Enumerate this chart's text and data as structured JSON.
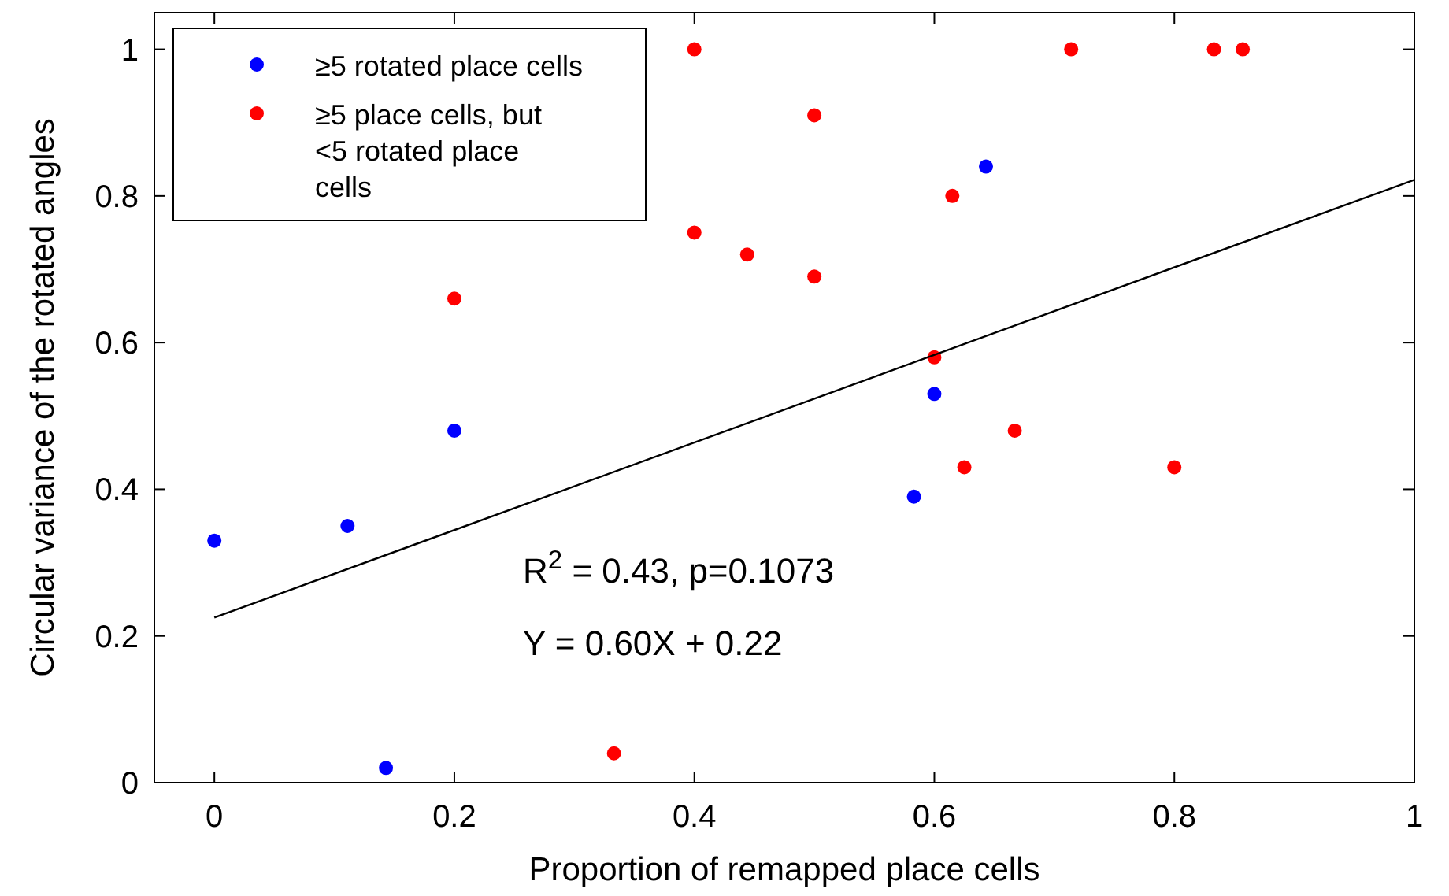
{
  "chart_data": {
    "type": "scatter",
    "xlabel": "Proportion of remapped place cells",
    "ylabel": "Circular variance of the rotated angles",
    "xlim": [
      -0.05,
      1
    ],
    "xticks": [
      0,
      0.2,
      0.4,
      0.6,
      0.8,
      1
    ],
    "ylim": [
      0,
      1.05
    ],
    "yticks": [
      0,
      0.2,
      0.4,
      0.6,
      0.8,
      1
    ],
    "grid": false,
    "legend": "top left",
    "marker": "circle",
    "annotations": [
      "R$^{2}$ = 0.43, p=0.1073",
      "Y = 0.60X + 0.22"
    ],
    "series": [
      {
        "name": "≥5 rotated place cells",
        "color": "#0000ff",
        "x": [
          0,
          0.111,
          0.143,
          0.2,
          0.583,
          0.6,
          0.643
        ],
        "values": [
          0.33,
          0.35,
          0.02,
          0.48,
          0.39,
          0.53,
          0.84
        ]
      },
      {
        "name": "≥5 place cells, but <5 rotated place cells",
        "color": "#ff0000",
        "x": [
          0.2,
          0.333,
          0.4,
          0.4,
          0.444,
          0.5,
          0.5,
          0.6,
          0.615,
          0.625,
          0.667,
          0.714,
          0.8,
          0.833,
          0.857
        ],
        "values": [
          0.66,
          0.04,
          1,
          0.75,
          0.72,
          0.91,
          0.69,
          0.58,
          0.8,
          0.43,
          0.48,
          1,
          0.43,
          1,
          1
        ]
      },
      {
        "type": "line",
        "color": "#000000",
        "x": [
          0,
          1
        ],
        "values": [
          0.225,
          0.822
        ],
        "marker": "none",
        "line_style": "solid"
      }
    ]
  }
}
